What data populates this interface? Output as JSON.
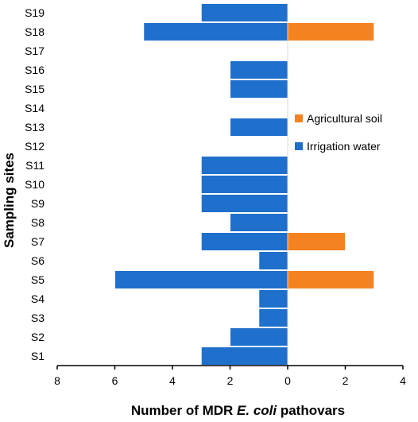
{
  "chart_data": {
    "type": "bar",
    "orientation": "horizontal-diverging",
    "categories": [
      "S1",
      "S2",
      "S3",
      "S4",
      "S5",
      "S6",
      "S7",
      "S8",
      "S9",
      "S10",
      "S11",
      "S12",
      "S13",
      "S14",
      "S15",
      "S16",
      "S17",
      "S18",
      "S19"
    ],
    "series": [
      {
        "name": "Agricultural soil",
        "color": "#F58220",
        "direction": "right",
        "values": [
          0,
          0,
          0,
          0,
          3,
          0,
          2,
          0,
          0,
          0,
          0,
          0,
          0,
          0,
          0,
          0,
          0,
          3,
          0
        ]
      },
      {
        "name": "Irrigation water",
        "color": "#1F6FCC",
        "direction": "left",
        "values": [
          3,
          2,
          1,
          1,
          6,
          1,
          3,
          2,
          3,
          3,
          3,
          0,
          2,
          0,
          2,
          2,
          0,
          5,
          3
        ]
      }
    ],
    "xlim": [
      -8,
      4
    ],
    "xticks": [
      "8",
      "6",
      "4",
      "2",
      "0",
      "2",
      "4"
    ],
    "xlabel_parts": [
      "Number of MDR ",
      "E. coli",
      " pathovars"
    ],
    "ylabel": "Sampling sites",
    "legend_position": "right-middle",
    "grid": false
  }
}
